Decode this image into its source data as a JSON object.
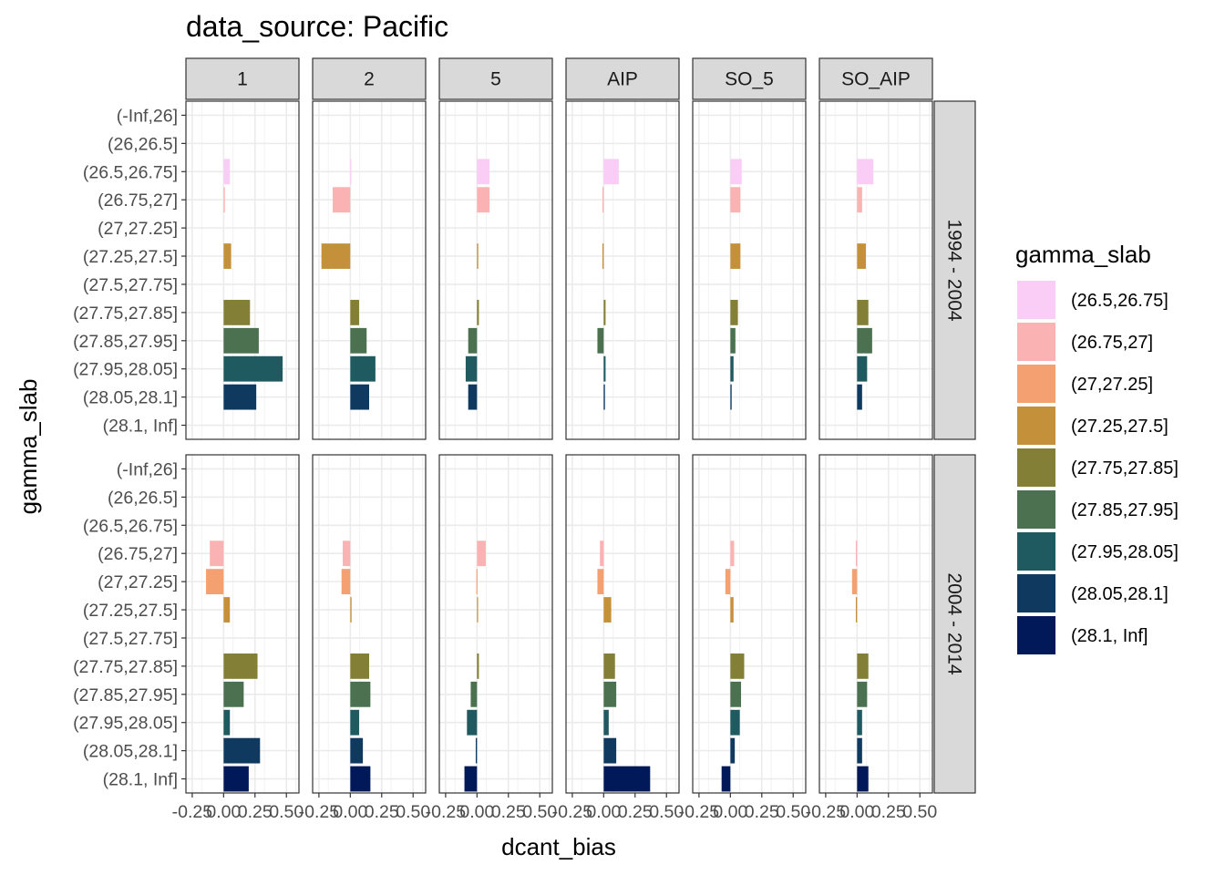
{
  "chart_data": {
    "type": "bar",
    "orientation": "horizontal",
    "title": "data_source: Pacific",
    "xlabel": "dcant_bias",
    "ylabel": "gamma_slab",
    "xlim": [
      -0.3,
      0.6
    ],
    "x_ticks": [
      -0.25,
      0.0,
      0.25,
      0.5
    ],
    "x_tick_labels": [
      "-0.25",
      "0.00",
      "0.25",
      "0.50"
    ],
    "grid": true,
    "legend_position": "right",
    "legend_title": "gamma_slab",
    "categories": [
      "(-Inf,26]",
      "(26,26.5]",
      "(26.5,26.75]",
      "(26.75,27]",
      "(27,27.25]",
      "(27.25,27.5]",
      "(27.5,27.75]",
      "(27.75,27.85]",
      "(27.85,27.95]",
      "(27.95,28.05]",
      "(28.05,28.1]",
      "(28.1, Inf]"
    ],
    "legend": [
      {
        "label": "(26.5,26.75]",
        "color": "#F9CDF6"
      },
      {
        "label": "(26.75,27]",
        "color": "#FBB2B2"
      },
      {
        "label": "(27,27.25]",
        "color": "#F4A070"
      },
      {
        "label": "(27.25,27.5]",
        "color": "#C4913A"
      },
      {
        "label": "(27.75,27.85]",
        "color": "#837F36"
      },
      {
        "label": "(27.85,27.95]",
        "color": "#4C7150"
      },
      {
        "label": "(27.95,28.05]",
        "color": "#1F5A61"
      },
      {
        "label": "(28.05,28.1]",
        "color": "#103960"
      },
      {
        "label": "(28.1, Inf]",
        "color": "#011959"
      }
    ],
    "category_colors": {
      "(26.5,26.75]": "#F9CDF6",
      "(26.75,27]": "#FBB2B2",
      "(27,27.25]": "#F4A070",
      "(27.25,27.5]": "#C4913A",
      "(27.75,27.85]": "#837F36",
      "(27.85,27.95]": "#4C7150",
      "(27.95,28.05]": "#1F5A61",
      "(28.05,28.1]": "#103960",
      "(28.1, Inf]": "#011959"
    },
    "columns": [
      "1",
      "2",
      "5",
      "AIP",
      "SO_5",
      "SO_AIP"
    ],
    "rows": [
      "1994 - 2004",
      "2004 - 2014"
    ],
    "panels": [
      [
        {
          "column": "1",
          "row": "1994 - 2004",
          "values": [
            null,
            null,
            0.05,
            0.01,
            null,
            0.06,
            null,
            0.21,
            0.28,
            0.47,
            0.26,
            null
          ]
        },
        {
          "column": "2",
          "row": "1994 - 2004",
          "values": [
            null,
            null,
            0.005,
            -0.14,
            null,
            -0.23,
            null,
            0.07,
            0.13,
            0.2,
            0.15,
            null
          ]
        },
        {
          "column": "5",
          "row": "1994 - 2004",
          "values": [
            null,
            null,
            0.1,
            0.1,
            null,
            0.01,
            null,
            0.015,
            -0.07,
            -0.09,
            -0.07,
            null
          ]
        },
        {
          "column": "AIP",
          "row": "1994 - 2004",
          "values": [
            null,
            null,
            0.12,
            -0.01,
            null,
            -0.01,
            null,
            0.015,
            -0.05,
            0.015,
            0.01,
            null
          ]
        },
        {
          "column": "SO_5",
          "row": "1994 - 2004",
          "values": [
            null,
            null,
            0.09,
            0.08,
            null,
            0.08,
            null,
            0.06,
            0.04,
            0.025,
            0.01,
            null
          ]
        },
        {
          "column": "SO_AIP",
          "row": "1994 - 2004",
          "values": [
            null,
            null,
            0.13,
            0.04,
            null,
            0.07,
            null,
            0.09,
            0.12,
            0.08,
            0.04,
            null
          ]
        }
      ],
      [
        {
          "column": "1",
          "row": "2004 - 2014",
          "values": [
            null,
            null,
            null,
            -0.11,
            -0.14,
            0.05,
            null,
            0.27,
            0.16,
            0.05,
            0.29,
            0.2
          ]
        },
        {
          "column": "2",
          "row": "2004 - 2014",
          "values": [
            null,
            null,
            null,
            -0.06,
            -0.07,
            0.01,
            null,
            0.15,
            0.16,
            0.07,
            0.1,
            0.16
          ]
        },
        {
          "column": "5",
          "row": "2004 - 2014",
          "values": [
            null,
            null,
            null,
            0.07,
            -0.005,
            0.005,
            null,
            0.015,
            -0.05,
            -0.08,
            -0.01,
            -0.1
          ]
        },
        {
          "column": "AIP",
          "row": "2004 - 2014",
          "values": [
            null,
            null,
            null,
            -0.03,
            -0.05,
            0.06,
            null,
            0.09,
            0.1,
            0.04,
            0.1,
            0.37
          ]
        },
        {
          "column": "SO_5",
          "row": "2004 - 2014",
          "values": [
            null,
            null,
            null,
            0.03,
            -0.04,
            0.025,
            null,
            0.11,
            0.085,
            0.075,
            0.035,
            -0.07
          ]
        },
        {
          "column": "SO_AIP",
          "row": "2004 - 2014",
          "values": [
            null,
            null,
            null,
            -0.01,
            -0.04,
            -0.01,
            null,
            0.09,
            0.08,
            0.04,
            0.04,
            0.09
          ]
        }
      ]
    ]
  }
}
